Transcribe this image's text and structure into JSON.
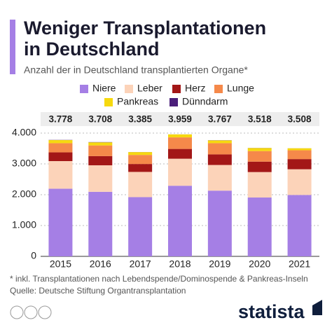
{
  "chart_data": {
    "type": "stacked_bar",
    "title": [
      "Weniger Transplantationen",
      "in Deutschland"
    ],
    "subtitle": "Anzahl der in Deutschland transplantierten Organe*",
    "categories": [
      "2015",
      "2016",
      "2017",
      "2018",
      "2019",
      "2020",
      "2021"
    ],
    "series": [
      {
        "name": "Niere",
        "color": "#a57fe5",
        "values": [
          2195,
          2094,
          1921,
          2291,
          2132,
          1909,
          1992
        ]
      },
      {
        "name": "Leber",
        "color": "#fcd3b9",
        "values": [
          896,
          861,
          819,
          877,
          833,
          826,
          834
        ]
      },
      {
        "name": "Herz",
        "color": "#a31717",
        "values": [
          283,
          297,
          257,
          318,
          344,
          339,
          330
        ]
      },
      {
        "name": "Lunge",
        "color": "#f5894a",
        "values": [
          298,
          347,
          294,
          375,
          363,
          342,
          286
        ]
      },
      {
        "name": "Pankreas",
        "color": "#f6d90f",
        "values": [
          100,
          101,
          92,
          97,
          90,
          99,
          65
        ]
      },
      {
        "name": "Dünndarm",
        "color": "#4b1f7a",
        "values": [
          6,
          8,
          2,
          1,
          5,
          3,
          1
        ]
      }
    ],
    "totals": [
      {
        "value": 3778,
        "label": "3.778"
      },
      {
        "value": 3708,
        "label": "3.708"
      },
      {
        "value": 3385,
        "label": "3.385"
      },
      {
        "value": 3959,
        "label": "3.959"
      },
      {
        "value": 3767,
        "label": "3.767"
      },
      {
        "value": 3518,
        "label": "3.518"
      },
      {
        "value": 3508,
        "label": "3.508"
      }
    ],
    "ylim": [
      0,
      4000
    ],
    "yticks": [
      0,
      {
        "value": 1000,
        "label": "1.000"
      },
      {
        "value": 2000,
        "label": "2.000"
      },
      {
        "value": 3000,
        "label": "3.000"
      },
      {
        "value": 4000,
        "label": "4.000"
      }
    ],
    "grid": true,
    "footnote": "* inkl. Transplantationen nach Lebendspende/Dominospende & Pankreas-Inseln",
    "source": "Quelle: Deutsche Stiftung Organtransplantation",
    "brand": "statista"
  }
}
